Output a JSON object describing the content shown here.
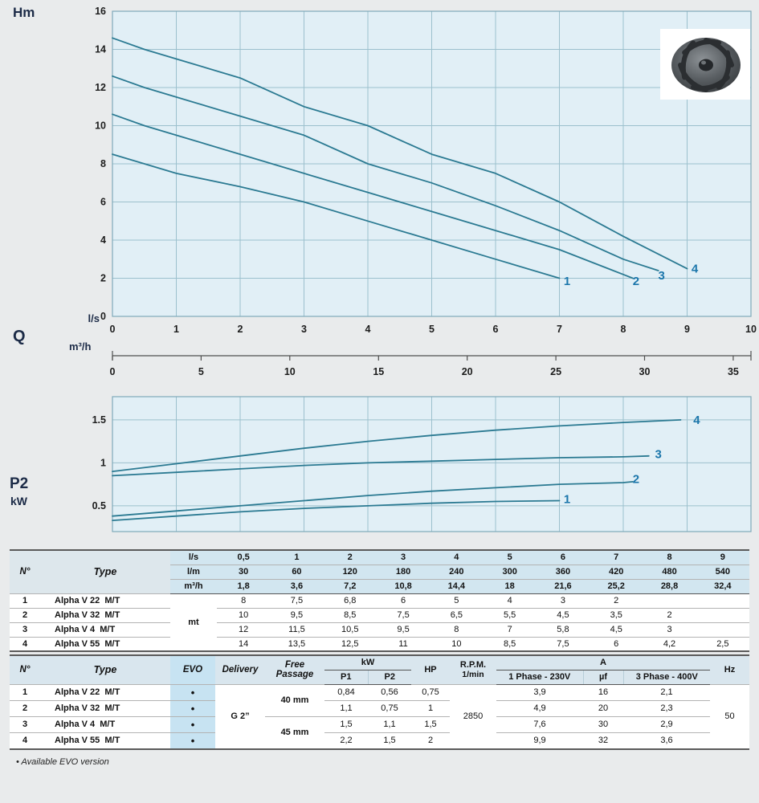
{
  "labels": {
    "hm": "Hm",
    "ls": "l/s",
    "q": "Q",
    "m3h": "m³/h",
    "p2": "P2",
    "kw": "kW"
  },
  "colors": {
    "chart_bg": "#e1eff6",
    "grid": "#9cc0cd",
    "curve": "#2b7a92",
    "curve_label": "#1b76ab",
    "header_blue": "#d2e6f0",
    "evo_blue": "#c7e3f2"
  },
  "chart_data": [
    {
      "type": "line",
      "title": "Head curves",
      "xlabel": "Q (l/s)",
      "ylabel": "Hm (m)",
      "xlim": [
        0,
        10
      ],
      "ylim": [
        0,
        16
      ],
      "x_ticks": [
        0,
        1,
        2,
        3,
        4,
        5,
        6,
        7,
        8,
        9,
        10
      ],
      "y_ticks": [
        0,
        2,
        4,
        6,
        8,
        10,
        12,
        14,
        16
      ],
      "x2_label": "m³/h",
      "x2_ticks": [
        0,
        5,
        10,
        15,
        20,
        25,
        30,
        35
      ],
      "grid": true,
      "series": [
        {
          "name": "1",
          "points": [
            [
              0,
              8.5
            ],
            [
              0.5,
              8
            ],
            [
              1,
              7.5
            ],
            [
              2,
              6.8
            ],
            [
              3,
              6
            ],
            [
              4,
              5
            ],
            [
              5,
              4
            ],
            [
              6,
              3
            ],
            [
              7,
              2
            ]
          ],
          "label_at": [
            7.12,
            1.85
          ]
        },
        {
          "name": "2",
          "points": [
            [
              0,
              10.6
            ],
            [
              0.5,
              10
            ],
            [
              1,
              9.5
            ],
            [
              2,
              8.5
            ],
            [
              3,
              7.5
            ],
            [
              4,
              6.5
            ],
            [
              5,
              5.5
            ],
            [
              6,
              4.5
            ],
            [
              7,
              3.5
            ],
            [
              8,
              2.2
            ],
            [
              8.15,
              2.0
            ]
          ],
          "label_at": [
            8.2,
            1.85
          ]
        },
        {
          "name": "3",
          "points": [
            [
              0,
              12.6
            ],
            [
              0.5,
              12
            ],
            [
              1,
              11.5
            ],
            [
              2,
              10.5
            ],
            [
              3,
              9.5
            ],
            [
              4,
              8
            ],
            [
              5,
              7
            ],
            [
              6,
              5.8
            ],
            [
              7,
              4.5
            ],
            [
              8,
              3
            ],
            [
              8.55,
              2.4
            ]
          ],
          "label_at": [
            8.6,
            2.15
          ]
        },
        {
          "name": "4",
          "points": [
            [
              0,
              14.6
            ],
            [
              0.5,
              14
            ],
            [
              1,
              13.5
            ],
            [
              2,
              12.5
            ],
            [
              3,
              11
            ],
            [
              4,
              10
            ],
            [
              5,
              8.5
            ],
            [
              6,
              7.5
            ],
            [
              7,
              6
            ],
            [
              8,
              4.2
            ],
            [
              9,
              2.5
            ]
          ],
          "label_at": [
            9.12,
            2.5
          ]
        }
      ]
    },
    {
      "type": "line",
      "title": "P2 power curves",
      "xlabel": "Q (l/s)",
      "ylabel": "P2 (kW)",
      "xlim": [
        0,
        10
      ],
      "ylim": [
        0.2,
        1.77
      ],
      "x_ticks": [
        0,
        1,
        2,
        3,
        4,
        5,
        6,
        7,
        8,
        9,
        10
      ],
      "y_ticks": [
        0.5,
        1,
        1.5
      ],
      "y_tick_labels": [
        "0.5",
        "1",
        "1.5"
      ],
      "grid": true,
      "series": [
        {
          "name": "1",
          "points": [
            [
              0,
              0.33
            ],
            [
              1,
              0.38
            ],
            [
              2,
              0.43
            ],
            [
              3,
              0.47
            ],
            [
              4,
              0.5
            ],
            [
              5,
              0.53
            ],
            [
              6,
              0.55
            ],
            [
              7,
              0.56
            ]
          ],
          "label_at": [
            7.12,
            0.58
          ]
        },
        {
          "name": "2",
          "points": [
            [
              0,
              0.38
            ],
            [
              1,
              0.44
            ],
            [
              2,
              0.5
            ],
            [
              3,
              0.56
            ],
            [
              4,
              0.62
            ],
            [
              5,
              0.67
            ],
            [
              6,
              0.71
            ],
            [
              7,
              0.75
            ],
            [
              8,
              0.77
            ],
            [
              8.15,
              0.78
            ]
          ],
          "label_at": [
            8.2,
            0.81
          ]
        },
        {
          "name": "3",
          "points": [
            [
              0,
              0.85
            ],
            [
              1,
              0.89
            ],
            [
              2,
              0.93
            ],
            [
              3,
              0.97
            ],
            [
              4,
              1.0
            ],
            [
              5,
              1.02
            ],
            [
              6,
              1.04
            ],
            [
              7,
              1.06
            ],
            [
              8,
              1.07
            ],
            [
              8.4,
              1.08
            ]
          ],
          "label_at": [
            8.55,
            1.1
          ]
        },
        {
          "name": "4",
          "points": [
            [
              0,
              0.9
            ],
            [
              1,
              0.99
            ],
            [
              2,
              1.08
            ],
            [
              3,
              1.17
            ],
            [
              4,
              1.25
            ],
            [
              5,
              1.32
            ],
            [
              6,
              1.38
            ],
            [
              7,
              1.43
            ],
            [
              8,
              1.47
            ],
            [
              8.9,
              1.5
            ]
          ],
          "label_at": [
            9.15,
            1.5
          ]
        }
      ]
    }
  ],
  "table1": {
    "col_no": "N°",
    "col_type": "Type",
    "unit_rows": [
      {
        "unit": "l/s",
        "values": [
          "0,5",
          "1",
          "2",
          "3",
          "4",
          "5",
          "6",
          "7",
          "8",
          "9"
        ]
      },
      {
        "unit": "l/m",
        "values": [
          "30",
          "60",
          "120",
          "180",
          "240",
          "300",
          "360",
          "420",
          "480",
          "540"
        ]
      },
      {
        "unit": "m³/h",
        "values": [
          "1,8",
          "3,6",
          "7,2",
          "10,8",
          "14,4",
          "18",
          "21,6",
          "25,2",
          "28,8",
          "32,4"
        ]
      }
    ],
    "body_unit": "mt",
    "rows": [
      {
        "no": "1",
        "type": "Alpha V 22  M/T",
        "values": [
          "8",
          "7,5",
          "6,8",
          "6",
          "5",
          "4",
          "3",
          "2",
          "",
          ""
        ]
      },
      {
        "no": "2",
        "type": "Alpha V 32  M/T",
        "values": [
          "10",
          "9,5",
          "8,5",
          "7,5",
          "6,5",
          "5,5",
          "4,5",
          "3,5",
          "2",
          ""
        ]
      },
      {
        "no": "3",
        "type": "Alpha V 4  M/T",
        "values": [
          "12",
          "11,5",
          "10,5",
          "9,5",
          "8",
          "7",
          "5,8",
          "4,5",
          "3",
          ""
        ]
      },
      {
        "no": "4",
        "type": "Alpha V 55  M/T",
        "values": [
          "14",
          "13,5",
          "12,5",
          "11",
          "10",
          "8,5",
          "7,5",
          "6",
          "4,2",
          "2,5"
        ]
      }
    ]
  },
  "table2": {
    "headers": {
      "no": "N°",
      "type": "Type",
      "evo": "EVO",
      "delivery": "Delivery",
      "free_passage": "Free Passage",
      "kw": "kW",
      "p1": "P1",
      "p2": "P2",
      "hp": "HP",
      "rpm": "R.P.M.",
      "rpm_unit": "1/min",
      "a": "A",
      "phase1": "1 Phase - 230V",
      "uf": "µf",
      "phase3": "3 Phase - 400V",
      "hz": "Hz"
    },
    "delivery_value": "G 2”",
    "free_passage_groups": [
      {
        "value": "40 mm",
        "rows": 2
      },
      {
        "value": "45 mm",
        "rows": 2
      }
    ],
    "rpm_value": "2850",
    "hz_value": "50",
    "rows": [
      {
        "no": "1",
        "type": "Alpha V 22  M/T",
        "evo": "•",
        "p1": "0,84",
        "p2": "0,56",
        "hp": "0,75",
        "a1": "3,9",
        "uf": "16",
        "a3": "2,1"
      },
      {
        "no": "2",
        "type": "Alpha V 32  M/T",
        "evo": "•",
        "p1": "1,1",
        "p2": "0,75",
        "hp": "1",
        "a1": "4,9",
        "uf": "20",
        "a3": "2,3"
      },
      {
        "no": "3",
        "type": "Alpha V 4  M/T",
        "evo": "•",
        "p1": "1,5",
        "p2": "1,1",
        "hp": "1,5",
        "a1": "7,6",
        "uf": "30",
        "a3": "2,9"
      },
      {
        "no": "4",
        "type": "Alpha V 55  M/T",
        "evo": "•",
        "p1": "2,2",
        "p2": "1,5",
        "hp": "2",
        "a1": "9,9",
        "uf": "32",
        "a3": "3,6"
      }
    ]
  },
  "footnote": "•  Available EVO version"
}
